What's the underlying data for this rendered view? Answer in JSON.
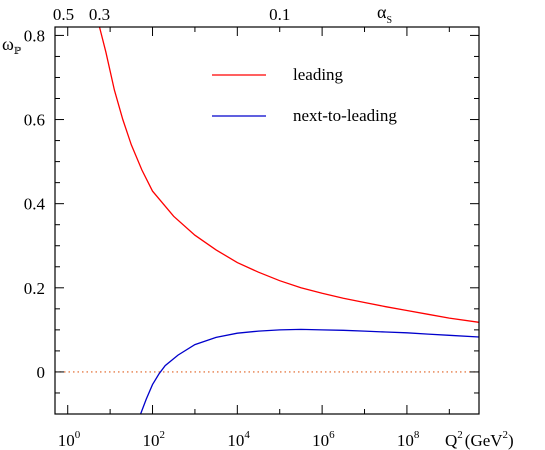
{
  "chart_data": {
    "type": "line",
    "title": "",
    "xlabel": "Q",
    "xlabel_sup": "2",
    "xlabel_unit_open": "(GeV",
    "xlabel_unit_sup": "2",
    "xlabel_unit_close": ")",
    "ylabel": "ω",
    "ylabel_sub": "ℙ",
    "top_axis_label": "α",
    "top_axis_label_sub": "S",
    "x_scale": "log10",
    "xlim_log10": [
      -0.3,
      9.7
    ],
    "ylim": [
      -0.1,
      0.82
    ],
    "x_ticks": [
      {
        "exp": 0,
        "base": "10",
        "sup": "0"
      },
      {
        "exp": 2,
        "base": "10",
        "sup": "2"
      },
      {
        "exp": 4,
        "base": "10",
        "sup": "4"
      },
      {
        "exp": 6,
        "base": "10",
        "sup": "6"
      },
      {
        "exp": 8,
        "base": "10",
        "sup": "8"
      }
    ],
    "y_ticks": [
      {
        "value": 0,
        "label": "0"
      },
      {
        "value": 0.2,
        "label": "0.2"
      },
      {
        "value": 0.4,
        "label": "0.4"
      },
      {
        "value": 0.6,
        "label": "0.6"
      },
      {
        "value": 0.8,
        "label": "0.8"
      }
    ],
    "top_ticks": [
      {
        "label": "0.5",
        "log10_q2": -0.1
      },
      {
        "label": "0.3",
        "log10_q2": 0.75
      },
      {
        "label": "0.1",
        "log10_q2": 5.0
      }
    ],
    "zero_line": {
      "value": 0,
      "color": "#e06020",
      "style": "dotted"
    },
    "legend": {
      "position": "top-right"
    },
    "series": [
      {
        "name": "leading",
        "color": "#ff0000",
        "points": [
          [
            0.75,
            0.82
          ],
          [
            0.9,
            0.76
          ],
          [
            1.1,
            0.67
          ],
          [
            1.3,
            0.6
          ],
          [
            1.5,
            0.54
          ],
          [
            1.75,
            0.48
          ],
          [
            2.0,
            0.43
          ],
          [
            2.5,
            0.37
          ],
          [
            3.0,
            0.325
          ],
          [
            3.5,
            0.29
          ],
          [
            4.0,
            0.26
          ],
          [
            4.5,
            0.237
          ],
          [
            5.0,
            0.217
          ],
          [
            5.5,
            0.2
          ],
          [
            6.0,
            0.187
          ],
          [
            6.5,
            0.175
          ],
          [
            7.0,
            0.165
          ],
          [
            7.5,
            0.155
          ],
          [
            8.0,
            0.146
          ],
          [
            8.5,
            0.137
          ],
          [
            9.0,
            0.128
          ],
          [
            9.7,
            0.118
          ]
        ]
      },
      {
        "name": "next-to-leading",
        "color": "#0000cc",
        "points": [
          [
            1.72,
            -0.1
          ],
          [
            1.85,
            -0.065
          ],
          [
            2.0,
            -0.03
          ],
          [
            2.15,
            -0.005
          ],
          [
            2.3,
            0.015
          ],
          [
            2.6,
            0.04
          ],
          [
            3.0,
            0.065
          ],
          [
            3.5,
            0.082
          ],
          [
            4.0,
            0.092
          ],
          [
            4.5,
            0.097
          ],
          [
            5.0,
            0.1
          ],
          [
            5.5,
            0.101
          ],
          [
            6.0,
            0.1
          ],
          [
            6.5,
            0.099
          ],
          [
            7.0,
            0.097
          ],
          [
            7.5,
            0.095
          ],
          [
            8.0,
            0.093
          ],
          [
            8.5,
            0.09
          ],
          [
            9.0,
            0.087
          ],
          [
            9.7,
            0.083
          ]
        ]
      }
    ]
  }
}
